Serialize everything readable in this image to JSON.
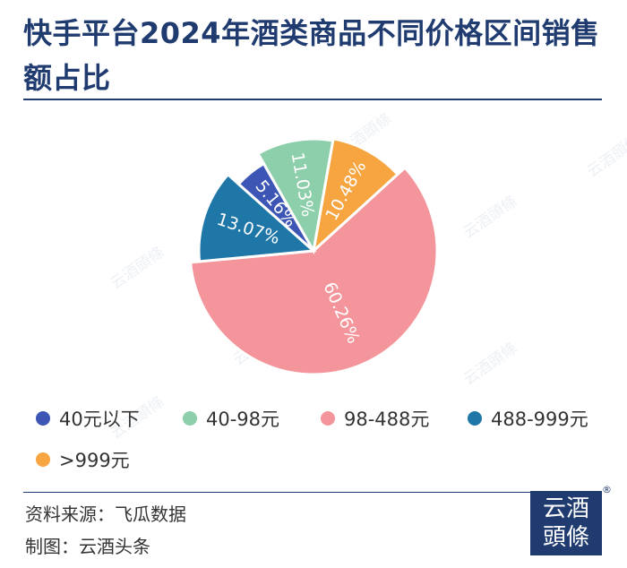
{
  "title": "快手平台2024年酒类商品不同价格区间销售额占比",
  "source_text": "资料来源：飞瓜数据",
  "maker_text": "制图：云酒头条",
  "logo": {
    "line1": "云酒",
    "line2": "頭條",
    "reg": "®"
  },
  "watermark_text": "云酒頭條",
  "chart_data": {
    "type": "pie",
    "legend_position": "bottom",
    "slices": [
      {
        "label": "40元以下",
        "value": 5.16,
        "display": "5.16%",
        "color": "#3d55b5"
      },
      {
        "label": "40-98元",
        "value": 11.03,
        "display": "11.03%",
        "color": "#8ecfab"
      },
      {
        "label": "98-488元",
        "value": 60.26,
        "display": "60.26%",
        "color": "#f4959c"
      },
      {
        "label": "488-999元",
        "value": 13.07,
        "display": "13.07%",
        "color": "#1f77a8"
      },
      {
        "label": ">999元",
        "value": 10.48,
        "display": "10.48%",
        "color": "#f6a540"
      }
    ],
    "slice_order_clockwise_from_top": [
      4,
      2,
      3,
      0,
      1
    ]
  }
}
